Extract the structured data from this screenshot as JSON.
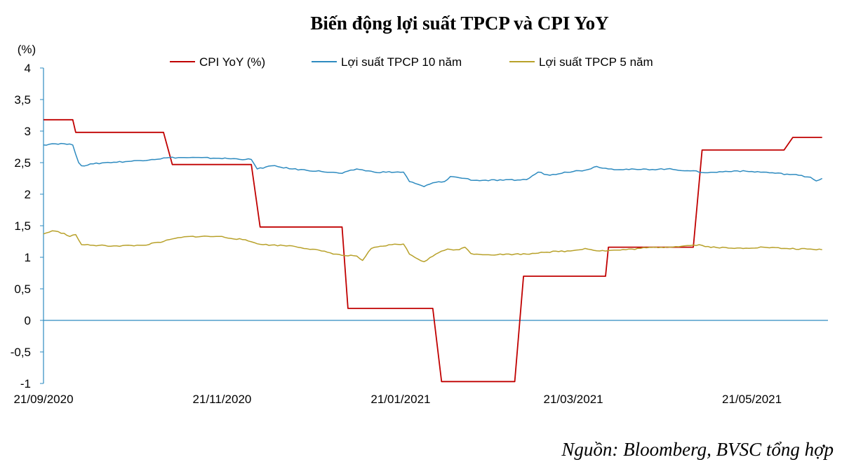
{
  "chart_data": {
    "type": "line",
    "title": "Biến động lợi suất TPCP và CPI YoY",
    "yunit": "(%)",
    "source": "Nguồn: Bloomberg, BVSC tổng hợp",
    "ylim": [
      -1,
      4
    ],
    "yticks": [
      "4",
      "3,5",
      "3",
      "2,5",
      "2",
      "1,5",
      "1",
      "0,5",
      "0",
      "-0,5",
      "-1"
    ],
    "xlim": [
      "2020-09-21",
      "2021-06-16"
    ],
    "xticks": [
      "21/09/2020",
      "21/11/2020",
      "21/01/2021",
      "21/03/2021",
      "21/05/2021"
    ],
    "grid": false,
    "legend_position": "top",
    "series": [
      {
        "name": "CPI YoY (%)",
        "color": "#C00000",
        "points": [
          [
            "2020-09-21",
            3.18
          ],
          [
            "2020-10-01",
            3.18
          ],
          [
            "2020-10-02",
            2.98
          ],
          [
            "2020-11-01",
            2.98
          ],
          [
            "2020-11-04",
            2.47
          ],
          [
            "2020-12-01",
            2.47
          ],
          [
            "2020-12-04",
            1.48
          ],
          [
            "2021-01-01",
            1.48
          ],
          [
            "2021-01-03",
            0.19
          ],
          [
            "2021-02-01",
            0.19
          ],
          [
            "2021-02-04",
            -0.97
          ],
          [
            "2021-03-01",
            -0.97
          ],
          [
            "2021-03-04",
            0.7
          ],
          [
            "2021-04-01",
            0.7
          ],
          [
            "2021-04-02",
            1.16
          ],
          [
            "2021-05-01",
            1.16
          ],
          [
            "2021-05-04",
            2.7
          ],
          [
            "2021-06-01",
            2.7
          ],
          [
            "2021-06-04",
            2.9
          ],
          [
            "2021-06-14",
            2.9
          ]
        ]
      },
      {
        "name": "Lợi suất TPCP 10 năm",
        "color": "#2E8BC0",
        "points": [
          [
            "2020-09-21",
            2.78
          ],
          [
            "2020-09-24",
            2.8
          ],
          [
            "2020-09-28",
            2.8
          ],
          [
            "2020-10-01",
            2.78
          ],
          [
            "2020-10-03",
            2.5
          ],
          [
            "2020-10-04",
            2.45
          ],
          [
            "2020-10-08",
            2.48
          ],
          [
            "2020-10-12",
            2.5
          ],
          [
            "2020-10-20",
            2.52
          ],
          [
            "2020-10-28",
            2.55
          ],
          [
            "2020-11-03",
            2.58
          ],
          [
            "2020-11-10",
            2.58
          ],
          [
            "2020-11-20",
            2.57
          ],
          [
            "2020-12-01",
            2.55
          ],
          [
            "2020-12-03",
            2.4
          ],
          [
            "2020-12-08",
            2.45
          ],
          [
            "2020-12-15",
            2.4
          ],
          [
            "2020-12-25",
            2.36
          ],
          [
            "2021-01-01",
            2.33
          ],
          [
            "2021-01-06",
            2.4
          ],
          [
            "2021-01-12",
            2.35
          ],
          [
            "2021-01-22",
            2.35
          ],
          [
            "2021-01-24",
            2.2
          ],
          [
            "2021-01-26",
            2.17
          ],
          [
            "2021-01-29",
            2.12
          ],
          [
            "2021-02-01",
            2.18
          ],
          [
            "2021-02-05",
            2.2
          ],
          [
            "2021-02-07",
            2.28
          ],
          [
            "2021-02-12",
            2.25
          ],
          [
            "2021-02-15",
            2.22
          ],
          [
            "2021-02-25",
            2.22
          ],
          [
            "2021-03-05",
            2.23
          ],
          [
            "2021-03-09",
            2.35
          ],
          [
            "2021-03-13",
            2.3
          ],
          [
            "2021-03-18",
            2.35
          ],
          [
            "2021-03-25",
            2.38
          ],
          [
            "2021-03-29",
            2.44
          ],
          [
            "2021-04-02",
            2.4
          ],
          [
            "2021-04-12",
            2.39
          ],
          [
            "2021-04-22",
            2.4
          ],
          [
            "2021-04-30",
            2.37
          ],
          [
            "2021-05-06",
            2.34
          ],
          [
            "2021-05-15",
            2.37
          ],
          [
            "2021-05-25",
            2.35
          ],
          [
            "2021-06-06",
            2.3
          ],
          [
            "2021-06-10",
            2.27
          ],
          [
            "2021-06-12",
            2.21
          ],
          [
            "2021-06-14",
            2.25
          ]
        ]
      },
      {
        "name": "Lợi suất TPCP 5 năm",
        "color": "#B8A12A",
        "points": [
          [
            "2020-09-21",
            1.37
          ],
          [
            "2020-09-24",
            1.42
          ],
          [
            "2020-09-28",
            1.38
          ],
          [
            "2020-09-30",
            1.33
          ],
          [
            "2020-10-02",
            1.36
          ],
          [
            "2020-10-04",
            1.2
          ],
          [
            "2020-10-08",
            1.19
          ],
          [
            "2020-10-15",
            1.18
          ],
          [
            "2020-10-25",
            1.19
          ],
          [
            "2020-11-01",
            1.25
          ],
          [
            "2020-11-05",
            1.3
          ],
          [
            "2020-11-10",
            1.33
          ],
          [
            "2020-11-20",
            1.33
          ],
          [
            "2020-11-28",
            1.28
          ],
          [
            "2020-12-05",
            1.2
          ],
          [
            "2020-12-15",
            1.18
          ],
          [
            "2020-12-25",
            1.1
          ],
          [
            "2021-01-01",
            1.03
          ],
          [
            "2021-01-06",
            1.02
          ],
          [
            "2021-01-08",
            0.95
          ],
          [
            "2021-01-11",
            1.14
          ],
          [
            "2021-01-18",
            1.2
          ],
          [
            "2021-01-22",
            1.21
          ],
          [
            "2021-01-24",
            1.05
          ],
          [
            "2021-01-27",
            0.97
          ],
          [
            "2021-01-29",
            0.93
          ],
          [
            "2021-02-02",
            1.05
          ],
          [
            "2021-02-06",
            1.13
          ],
          [
            "2021-02-10",
            1.12
          ],
          [
            "2021-02-12",
            1.16
          ],
          [
            "2021-02-14",
            1.06
          ],
          [
            "2021-02-20",
            1.04
          ],
          [
            "2021-03-01",
            1.05
          ],
          [
            "2021-03-05",
            1.05
          ],
          [
            "2021-03-10",
            1.08
          ],
          [
            "2021-03-20",
            1.1
          ],
          [
            "2021-03-25",
            1.14
          ],
          [
            "2021-03-30",
            1.1
          ],
          [
            "2021-04-08",
            1.12
          ],
          [
            "2021-04-15",
            1.15
          ],
          [
            "2021-04-25",
            1.17
          ],
          [
            "2021-05-03",
            1.2
          ],
          [
            "2021-05-05",
            1.17
          ],
          [
            "2021-05-15",
            1.14
          ],
          [
            "2021-05-25",
            1.16
          ],
          [
            "2021-06-01",
            1.14
          ],
          [
            "2021-06-14",
            1.12
          ]
        ]
      }
    ]
  }
}
